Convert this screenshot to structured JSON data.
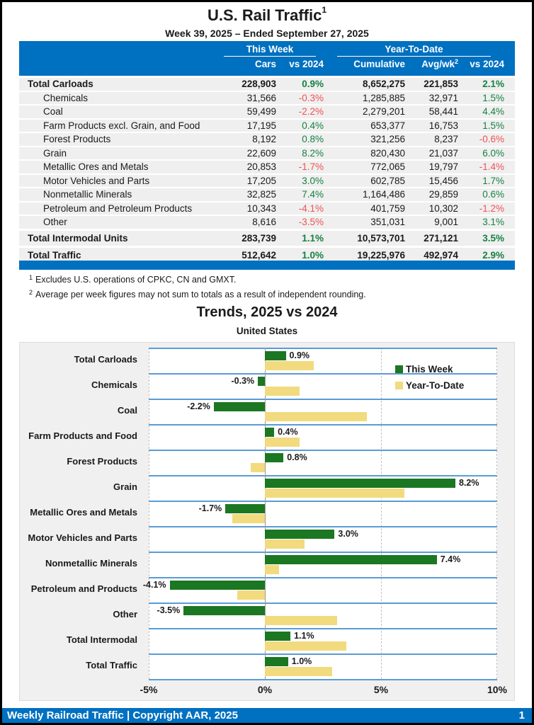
{
  "page": {
    "title": "U.S. Rail Traffic",
    "title_sup": "1",
    "subtitle": "Week 39, 2025 – Ended September 27, 2025"
  },
  "table": {
    "group_headers": {
      "this_week": "This Week",
      "ytd": "Year-To-Date"
    },
    "columns": {
      "cars": "Cars",
      "wk_vs2024": "vs 2024",
      "cumulative": "Cumulative",
      "avgwk": "Avg/wk",
      "avgwk_sup": "2",
      "ytd_vs2024": "vs 2024"
    },
    "rows": [
      {
        "label": "Total Carloads",
        "bold": true,
        "total": false,
        "cars": "228,903",
        "wk_pct": "0.9%",
        "wk_dir": "pos",
        "cumulative": "8,652,275",
        "avgwk": "221,853",
        "ytd_pct": "2.1%",
        "ytd_dir": "pos"
      },
      {
        "label": "Chemicals",
        "bold": false,
        "total": false,
        "cars": "31,566",
        "wk_pct": "-0.3%",
        "wk_dir": "neg",
        "cumulative": "1,285,885",
        "avgwk": "32,971",
        "ytd_pct": "1.5%",
        "ytd_dir": "pos"
      },
      {
        "label": "Coal",
        "bold": false,
        "total": false,
        "cars": "59,499",
        "wk_pct": "-2.2%",
        "wk_dir": "neg",
        "cumulative": "2,279,201",
        "avgwk": "58,441",
        "ytd_pct": "4.4%",
        "ytd_dir": "pos"
      },
      {
        "label": "Farm Products excl. Grain, and Food",
        "bold": false,
        "total": false,
        "cars": "17,195",
        "wk_pct": "0.4%",
        "wk_dir": "pos",
        "cumulative": "653,377",
        "avgwk": "16,753",
        "ytd_pct": "1.5%",
        "ytd_dir": "pos"
      },
      {
        "label": "Forest Products",
        "bold": false,
        "total": false,
        "cars": "8,192",
        "wk_pct": "0.8%",
        "wk_dir": "pos",
        "cumulative": "321,256",
        "avgwk": "8,237",
        "ytd_pct": "-0.6%",
        "ytd_dir": "neg"
      },
      {
        "label": "Grain",
        "bold": false,
        "total": false,
        "cars": "22,609",
        "wk_pct": "8.2%",
        "wk_dir": "pos",
        "cumulative": "820,430",
        "avgwk": "21,037",
        "ytd_pct": "6.0%",
        "ytd_dir": "pos"
      },
      {
        "label": "Metallic Ores and Metals",
        "bold": false,
        "total": false,
        "cars": "20,853",
        "wk_pct": "-1.7%",
        "wk_dir": "neg",
        "cumulative": "772,065",
        "avgwk": "19,797",
        "ytd_pct": "-1.4%",
        "ytd_dir": "neg"
      },
      {
        "label": "Motor Vehicles and Parts",
        "bold": false,
        "total": false,
        "cars": "17,205",
        "wk_pct": "3.0%",
        "wk_dir": "pos",
        "cumulative": "602,785",
        "avgwk": "15,456",
        "ytd_pct": "1.7%",
        "ytd_dir": "pos"
      },
      {
        "label": "Nonmetallic Minerals",
        "bold": false,
        "total": false,
        "cars": "32,825",
        "wk_pct": "7.4%",
        "wk_dir": "pos",
        "cumulative": "1,164,486",
        "avgwk": "29,859",
        "ytd_pct": "0.6%",
        "ytd_dir": "pos"
      },
      {
        "label": "Petroleum and Petroleum Products",
        "bold": false,
        "total": false,
        "cars": "10,343",
        "wk_pct": "-4.1%",
        "wk_dir": "neg",
        "cumulative": "401,759",
        "avgwk": "10,302",
        "ytd_pct": "-1.2%",
        "ytd_dir": "neg"
      },
      {
        "label": "Other",
        "bold": false,
        "total": false,
        "cars": "8,616",
        "wk_pct": "-3.5%",
        "wk_dir": "neg",
        "cumulative": "351,031",
        "avgwk": "9,001",
        "ytd_pct": "3.1%",
        "ytd_dir": "pos"
      },
      {
        "label": "Total Intermodal Units",
        "bold": true,
        "total": true,
        "cars": "283,739",
        "wk_pct": "1.1%",
        "wk_dir": "pos",
        "cumulative": "10,573,701",
        "avgwk": "271,121",
        "ytd_pct": "3.5%",
        "ytd_dir": "pos"
      },
      {
        "label": "Total Traffic",
        "bold": true,
        "total": true,
        "cars": "512,642",
        "wk_pct": "1.0%",
        "wk_dir": "pos",
        "cumulative": "19,225,976",
        "avgwk": "492,974",
        "ytd_pct": "2.9%",
        "ytd_dir": "pos"
      }
    ]
  },
  "footnotes": [
    {
      "sup": "1",
      "text": "Excludes U.S. operations of CPKC, CN and GMXT."
    },
    {
      "sup": "2",
      "text": "Average per week figures may not sum to totals as a result of independent rounding."
    }
  ],
  "chart": {
    "title": "Trends, 2025 vs 2024",
    "subtitle": "United States"
  },
  "chart_data": {
    "type": "bar",
    "orientation": "horizontal",
    "title": "Trends, 2025 vs 2024",
    "subtitle": "United States",
    "categories": [
      "Total Carloads",
      "Chemicals",
      "Coal",
      "Farm Products and Food",
      "Forest Products",
      "Grain",
      "Metallic Ores and Metals",
      "Motor Vehicles and Parts",
      "Nonmetallic Minerals",
      "Petroleum and Products",
      "Other",
      "Total Intermodal",
      "Total Traffic"
    ],
    "series": [
      {
        "name": "This Week",
        "color": "#1B7722",
        "values": [
          0.9,
          -0.3,
          -2.2,
          0.4,
          0.8,
          8.2,
          -1.7,
          3.0,
          7.4,
          -4.1,
          -3.5,
          1.1,
          1.0
        ]
      },
      {
        "name": "Year-To-Date",
        "color": "#F2DA7E",
        "values": [
          2.1,
          1.5,
          4.4,
          1.5,
          -0.6,
          6.0,
          -1.4,
          1.7,
          0.6,
          -1.2,
          3.1,
          3.5,
          2.9
        ]
      }
    ],
    "bar_labels": [
      "0.9%",
      "-0.3%",
      "-2.2%",
      "0.4%",
      "0.8%",
      "8.2%",
      "-1.7%",
      "3.0%",
      "7.4%",
      "-4.1%",
      "-3.5%",
      "1.1%",
      "1.0%"
    ],
    "xlim": [
      -5,
      10
    ],
    "xticks": [
      "-5%",
      "0%",
      "5%",
      "10%"
    ],
    "xtick_values": [
      -5,
      0,
      5,
      10
    ],
    "legend_position": "top-right",
    "grid": "dashed vertical gridlines at -5, 5, 10; solid gray line at 0; blue horizontal band separators"
  },
  "footer": {
    "left": "Weekly Railroad Traffic | Copyright AAR, 2025",
    "page_number": "1"
  },
  "colors": {
    "header_blue": "#0070C0",
    "band_separator_blue": "#5B9BD5",
    "row_gray": "#EFEFEF",
    "panel_gray": "#F0F0F0",
    "positive_green_text": "#168142",
    "negative_red_text": "#F25252",
    "bar_green": "#1B7722",
    "bar_yellow": "#F2DA7E"
  }
}
